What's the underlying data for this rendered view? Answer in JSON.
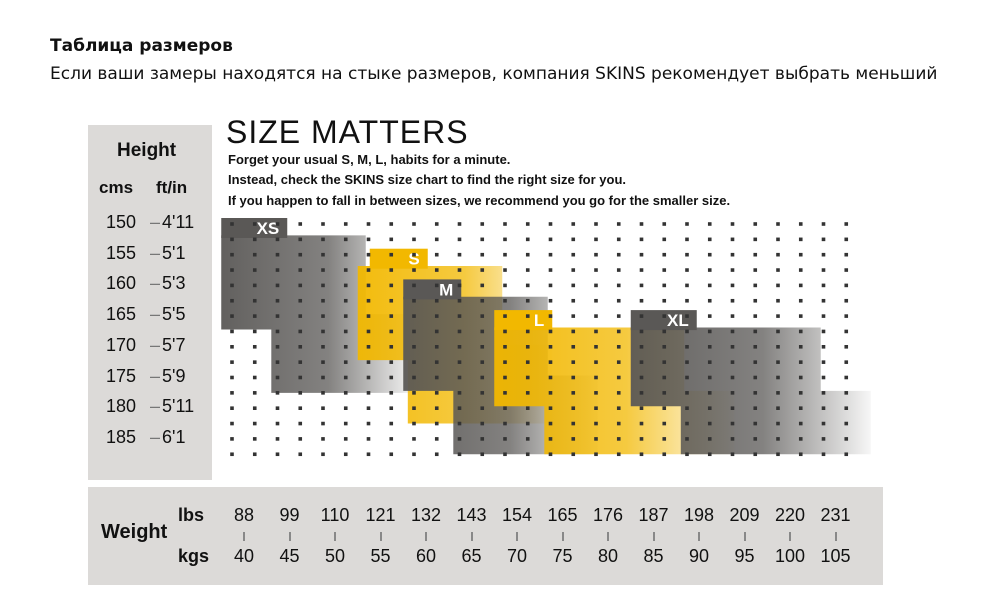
{
  "page": {
    "title": "Таблица размеров",
    "subtitle": "Если ваши замеры находятся на стыке размеров, компания SKINS рекомендует выбрать меньший"
  },
  "chart_data": {
    "type": "heatmap",
    "title": "SIZE MATTERS",
    "subtitle_lines": [
      "Forget your usual S, M, L, habits for a minute.",
      "Instead, check the SKINS size chart to find the right size for you.",
      "If you happen to fall in between sizes, we recommend you go for the smaller size."
    ],
    "height": {
      "label": "Height",
      "unit_cms": "cms",
      "unit_ft": "ft/in",
      "dash": "–",
      "rows": [
        {
          "cm": "150",
          "ft": "4'11"
        },
        {
          "cm": "155",
          "ft": "5'1"
        },
        {
          "cm": "160",
          "ft": "5'3"
        },
        {
          "cm": "165",
          "ft": "5'5"
        },
        {
          "cm": "170",
          "ft": "5'7"
        },
        {
          "cm": "175",
          "ft": "5'9"
        },
        {
          "cm": "180",
          "ft": "5'11"
        },
        {
          "cm": "185",
          "ft": "6'1"
        }
      ]
    },
    "weight": {
      "label": "Weight",
      "unit_lbs": "lbs",
      "unit_kgs": "kgs",
      "lbs": [
        "88",
        "99",
        "110",
        "121",
        "132",
        "143",
        "154",
        "165",
        "176",
        "187",
        "198",
        "209",
        "220",
        "231"
      ],
      "kgs": [
        "40",
        "45",
        "50",
        "55",
        "60",
        "65",
        "70",
        "75",
        "80",
        "85",
        "90",
        "95",
        "100",
        "105"
      ]
    },
    "sizes": [
      {
        "name": "XS",
        "color": "#5a5856",
        "kg_range": [
          40,
          55
        ],
        "height_range_cm": [
          150,
          175
        ]
      },
      {
        "name": "S",
        "color": "#f2b800",
        "kg_range": [
          55,
          70
        ],
        "height_range_cm": [
          155,
          180
        ]
      },
      {
        "name": "M",
        "color": "#5a5856",
        "kg_range": [
          60,
          75
        ],
        "height_range_cm": [
          160,
          185
        ]
      },
      {
        "name": "L",
        "color": "#f2b800",
        "kg_range": [
          70,
          90
        ],
        "height_range_cm": [
          165,
          190
        ]
      },
      {
        "name": "XL",
        "color": "#5a5856",
        "kg_range": [
          85,
          105
        ],
        "height_range_cm": [
          165,
          190
        ]
      }
    ],
    "colors": {
      "gray": "#5a5856",
      "yellow": "#f2b800",
      "panel": "#dcdad8",
      "dot": "#333333"
    },
    "grid": true
  }
}
